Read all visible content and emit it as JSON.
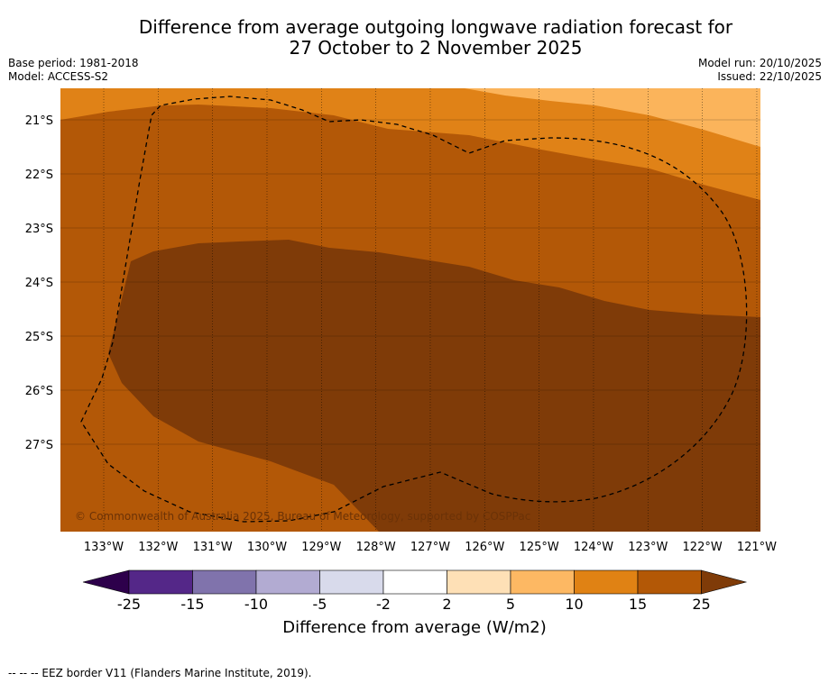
{
  "title": {
    "line1": "Difference from average outgoing longwave radiation forecast for",
    "line2": "27 October to 2 November 2025"
  },
  "meta": {
    "base_period": "Base period: 1981-2018",
    "model": "Model: ACCESS-S2",
    "model_run": "Model run: 20/10/2025",
    "issued": "Issued: 22/10/2025"
  },
  "map": {
    "lon_ticks": [
      "133°W",
      "132°W",
      "131°W",
      "130°W",
      "129°W",
      "128°W",
      "127°W",
      "126°W",
      "125°W",
      "124°W",
      "123°W",
      "122°W",
      "121°W"
    ],
    "lat_ticks": [
      "21°S",
      "22°S",
      "23°S",
      "24°S",
      "25°S",
      "26°S",
      "27°S"
    ],
    "copyright": "© Commonwealth of Australia 2025, Bureau of Meteorology, supported by COSPPac",
    "legend_line": "EEZ border",
    "colors": {
      "band_5_10": "#fbb45b",
      "band_10_15": "#e08217",
      "band_15_25": "#b35807",
      "band_25_plus": "#7f3b08"
    }
  },
  "colorbar": {
    "ticks": [
      "-25",
      "-15",
      "-10",
      "-5",
      "-2",
      "2",
      "5",
      "10",
      "15",
      "25"
    ],
    "colors": [
      "#2d004b",
      "#542788",
      "#8073ac",
      "#b2abd2",
      "#d8daeb",
      "#ffffff",
      "#fee0b6",
      "#fdb863",
      "#e08214",
      "#b35806",
      "#7f3b08"
    ],
    "label": "Difference from average (W/m2)"
  },
  "footnote": "--  --  -- EEZ border V11 (Flanders Marine Institute, 2019)."
}
